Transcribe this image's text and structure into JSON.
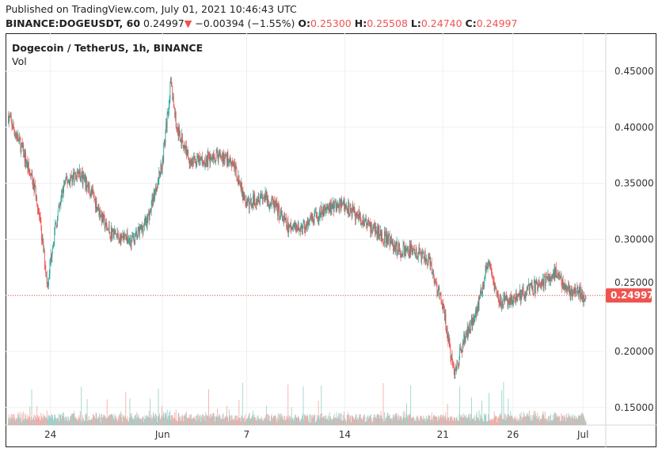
{
  "header": {
    "published": "Published on TradingView.com, July 01, 2021 10:46:43 UTC",
    "symbol": "BINANCE:DOGEUSDT, 60",
    "last": "0.24997",
    "arrow": "▼",
    "change": "−0.00394 (−1.55%)",
    "o_label": "O:",
    "o": "0.25300",
    "h_label": "H:",
    "h": "0.25508",
    "l_label": "L:",
    "l": "0.24740",
    "c_label": "C:",
    "c": "0.24997"
  },
  "legend": {
    "title": "Dogecoin / TetherUS, 1h, BINANCE",
    "vol": "Vol"
  },
  "colors": {
    "up": "#26a69a",
    "down": "#ef5350",
    "up_vol": "#8fd1c8",
    "down_vol": "#f5a5a3"
  },
  "chart_data": {
    "type": "candlestick",
    "title": "Dogecoin / TetherUS, 1h, BINANCE",
    "ylim": [
      0.13,
      0.484
    ],
    "y_ticks": [
      "0.45000",
      "0.40000",
      "0.35000",
      "0.30000",
      "0.25000",
      "0.20000",
      "0.15000"
    ],
    "y_tick_values": [
      0.45,
      0.4,
      0.35,
      0.3,
      0.25,
      0.2,
      0.15
    ],
    "x_ticks": [
      {
        "label": "24",
        "day": 3
      },
      {
        "label": "Jun",
        "day": 11
      },
      {
        "label": "7",
        "day": 17
      },
      {
        "label": "14",
        "day": 24
      },
      {
        "label": "21",
        "day": 31
      },
      {
        "label": "26",
        "day": 36
      },
      {
        "label": "Jul",
        "day": 41
      }
    ],
    "last_price": "0.24997",
    "last_price_value": 0.24997,
    "price_path_by_day": [
      [
        0,
        0.41
      ],
      [
        1,
        0.38
      ],
      [
        2,
        0.34
      ],
      [
        2.8,
        0.26
      ],
      [
        3.2,
        0.3
      ],
      [
        4,
        0.35
      ],
      [
        5,
        0.36
      ],
      [
        6,
        0.34
      ],
      [
        7,
        0.31
      ],
      [
        8,
        0.3
      ],
      [
        9,
        0.3
      ],
      [
        10,
        0.32
      ],
      [
        11,
        0.37
      ],
      [
        11.6,
        0.44
      ],
      [
        12,
        0.4
      ],
      [
        13,
        0.37
      ],
      [
        14,
        0.37
      ],
      [
        15,
        0.375
      ],
      [
        16,
        0.37
      ],
      [
        17,
        0.33
      ],
      [
        18,
        0.34
      ],
      [
        19,
        0.33
      ],
      [
        20,
        0.31
      ],
      [
        21,
        0.31
      ],
      [
        22,
        0.32
      ],
      [
        23,
        0.33
      ],
      [
        24,
        0.33
      ],
      [
        25,
        0.32
      ],
      [
        26,
        0.31
      ],
      [
        27,
        0.3
      ],
      [
        28,
        0.29
      ],
      [
        29,
        0.29
      ],
      [
        30,
        0.28
      ],
      [
        31,
        0.24
      ],
      [
        31.8,
        0.18
      ],
      [
        32.5,
        0.21
      ],
      [
        33.5,
        0.24
      ],
      [
        34.2,
        0.28
      ],
      [
        35,
        0.245
      ],
      [
        36,
        0.245
      ],
      [
        37,
        0.255
      ],
      [
        38,
        0.26
      ],
      [
        39,
        0.27
      ],
      [
        40,
        0.255
      ],
      [
        41,
        0.25
      ]
    ]
  }
}
